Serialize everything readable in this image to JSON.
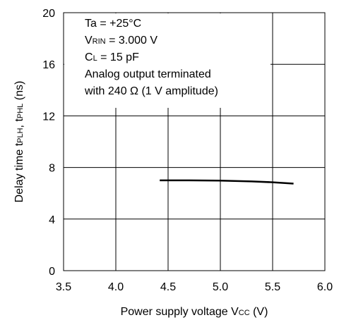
{
  "chart_data": {
    "type": "line",
    "xlabel": "Power supply voltage V",
    "xlabel_sub": "CC",
    "xlabel_unit": " (V)",
    "ylabel_main": "Delay time   t",
    "ylabel_sub1": "PLH",
    "ylabel_mid": ", t",
    "ylabel_sub2": "PHL",
    "ylabel_unit": " (ns)",
    "xlim": [
      3.5,
      6.0
    ],
    "ylim": [
      0,
      20
    ],
    "xticks": [
      "3.5",
      "4.0",
      "4.5",
      "5.0",
      "5.5",
      "6.0"
    ],
    "yticks": [
      "0",
      "4",
      "8",
      "12",
      "16",
      "20"
    ],
    "grid": true,
    "series": [
      {
        "x": [
          4.42,
          4.7,
          5.0,
          5.3,
          5.5,
          5.7
        ],
        "y": [
          7.0,
          7.0,
          6.98,
          6.92,
          6.85,
          6.75
        ]
      }
    ],
    "annotations": {
      "line1": "Ta = +25°C",
      "line2_pre": "V",
      "line2_sub": "RIN",
      "line2_post": " = 3.000 V",
      "line3_pre": "C",
      "line3_sub": "L",
      "line3_post": " = 15 pF",
      "line4": "Analog output terminated",
      "line5": "with 240 Ω (1 V amplitude)"
    }
  }
}
